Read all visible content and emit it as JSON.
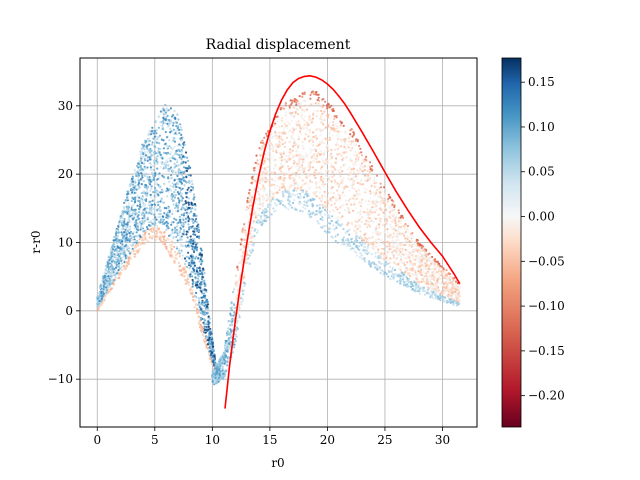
{
  "chart_data": {
    "type": "scatter",
    "title": "Radial displacement",
    "xlabel": "r0",
    "ylabel": "r-r0",
    "xlim": [
      -1.5,
      33
    ],
    "ylim": [
      -17,
      37
    ],
    "xticks": [
      0,
      5,
      10,
      15,
      20,
      25,
      30
    ],
    "yticks": [
      -10,
      0,
      10,
      20,
      30
    ],
    "grid": true,
    "scatter_colorscale": "RdBu",
    "colorbar": {
      "range": [
        -0.235,
        0.177
      ],
      "ticks": [
        -0.2,
        -0.15,
        -0.1,
        -0.05,
        0.0,
        0.05,
        0.1,
        0.15
      ],
      "tick_labels": [
        "−0.20",
        "−0.15",
        "−0.10",
        "−0.05",
        "0.00",
        "0.05",
        "0.10",
        "0.15"
      ]
    },
    "scatter_bands": [
      {
        "x_range": [
          0,
          10.5
        ],
        "upper": [
          [
            0,
            2
          ],
          [
            2,
            14
          ],
          [
            4,
            25
          ],
          [
            6,
            30.5
          ],
          [
            7,
            29
          ],
          [
            8,
            22
          ],
          [
            9,
            10
          ],
          [
            10,
            -4
          ],
          [
            10.5,
            -10
          ]
        ],
        "lower": [
          [
            0,
            0
          ],
          [
            2,
            5
          ],
          [
            4,
            9.5
          ],
          [
            5,
            10.5
          ],
          [
            6,
            9
          ],
          [
            8,
            3
          ],
          [
            9,
            -3
          ],
          [
            10,
            -8
          ],
          [
            10.5,
            -10
          ]
        ],
        "color_value": 0.09
      },
      {
        "x_range": [
          10,
          31.5
        ],
        "upper": [
          [
            10,
            -9
          ],
          [
            11,
            -6
          ],
          [
            12,
            5
          ],
          [
            13,
            16
          ],
          [
            14,
            24
          ],
          [
            16,
            30
          ],
          [
            18,
            32
          ],
          [
            19,
            32.5
          ],
          [
            22,
            27
          ],
          [
            25,
            18
          ],
          [
            28,
            10
          ],
          [
            31.5,
            4
          ]
        ],
        "lower": [
          [
            10,
            -11
          ],
          [
            11,
            -10
          ],
          [
            12,
            -5
          ],
          [
            13,
            5
          ],
          [
            14,
            12
          ],
          [
            16,
            15
          ],
          [
            18,
            14.5
          ],
          [
            20,
            11
          ],
          [
            25,
            5
          ],
          [
            28,
            2.5
          ],
          [
            31.5,
            0.5
          ]
        ],
        "color_value": -0.04
      }
    ],
    "series": [
      {
        "name": "",
        "type": "line",
        "color": "#ff0000",
        "x": [
          11.1,
          11.5,
          12,
          12.5,
          13,
          13.5,
          14,
          14.5,
          15,
          15.5,
          16,
          16.5,
          17,
          17.5,
          18,
          18.5,
          19,
          19.5,
          20,
          20.5,
          21,
          21.5,
          22,
          23,
          24,
          25,
          26,
          27,
          28,
          29,
          30,
          31,
          31.5
        ],
        "y": [
          -14.3,
          -8,
          -1.5,
          4.5,
          10,
          15,
          19.5,
          23.2,
          26.3,
          28.8,
          30.8,
          32.3,
          33.4,
          34.0,
          34.3,
          34.4,
          34.2,
          33.8,
          33.2,
          32.4,
          31.4,
          30.3,
          29.0,
          26.2,
          23.3,
          20.3,
          17.4,
          14.7,
          12.2,
          10.0,
          8.0,
          5.4,
          4.0
        ]
      }
    ]
  }
}
